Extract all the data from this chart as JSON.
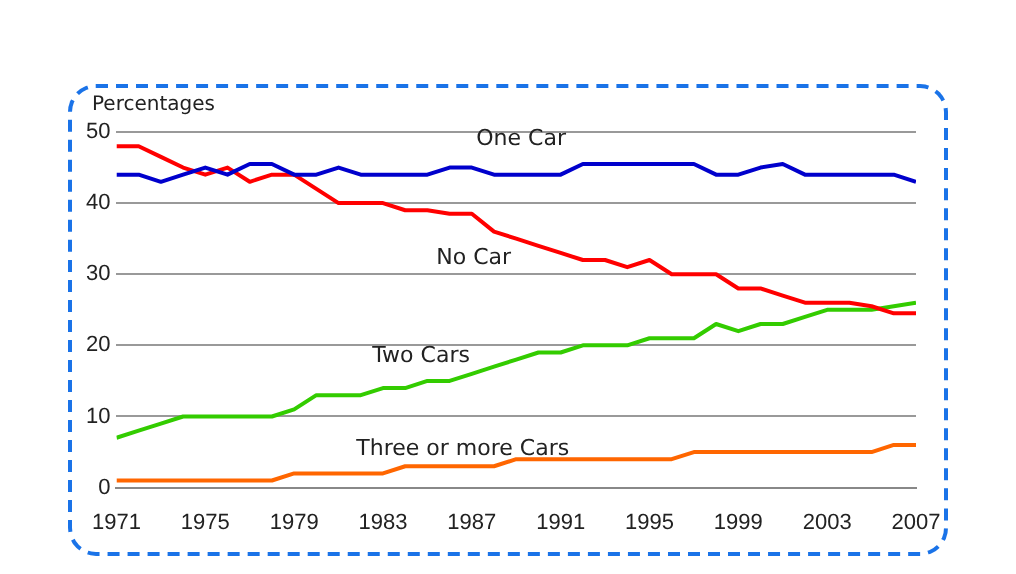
{
  "chart_data": {
    "type": "line",
    "ylabel": "Percentages",
    "x": [
      1971,
      1972,
      1973,
      1974,
      1975,
      1976,
      1977,
      1978,
      1979,
      1980,
      1981,
      1982,
      1983,
      1984,
      1985,
      1986,
      1987,
      1988,
      1989,
      1990,
      1991,
      1992,
      1993,
      1994,
      1995,
      1996,
      1997,
      1998,
      1999,
      2000,
      2001,
      2002,
      2003,
      2004,
      2005,
      2006,
      2007
    ],
    "series": [
      {
        "name": "One Car",
        "color": "#0000cc",
        "values": [
          44,
          44,
          43,
          44,
          45,
          44,
          45.5,
          45.5,
          44,
          44,
          45,
          44,
          44,
          44,
          44,
          45,
          45,
          44,
          44,
          44,
          44,
          45.5,
          45.5,
          45.5,
          45.5,
          45.5,
          45.5,
          44,
          44,
          45,
          45.5,
          44,
          44,
          44,
          44,
          44,
          43
        ]
      },
      {
        "name": "No Car",
        "color": "#ff0000",
        "values": [
          48,
          48,
          46.5,
          45,
          44,
          45,
          43,
          44,
          44,
          42,
          40,
          40,
          40,
          39,
          39,
          38.5,
          38.5,
          36,
          35,
          34,
          33,
          32,
          32,
          31,
          32,
          30,
          30,
          30,
          28,
          28,
          27,
          26,
          26,
          26,
          25.5,
          24.5,
          24.5
        ]
      },
      {
        "name": "Two Cars",
        "color": "#33cc00",
        "values": [
          7,
          8,
          9,
          10,
          10,
          10,
          10,
          10,
          11,
          13,
          13,
          13,
          14,
          14,
          15,
          15,
          16,
          17,
          18,
          19,
          19,
          20,
          20,
          20,
          21,
          21,
          21,
          23,
          22,
          23,
          23,
          24,
          25,
          25,
          25,
          25.5,
          26
        ]
      },
      {
        "name": "Three or more Cars",
        "color": "#ff6600",
        "values": [
          1,
          1,
          1,
          1,
          1,
          1,
          1,
          1,
          2,
          2,
          2,
          2,
          2,
          3,
          3,
          3,
          3,
          3,
          4,
          4,
          4,
          4,
          4,
          4,
          4,
          4,
          5,
          5,
          5,
          5,
          5,
          5,
          5,
          5,
          5,
          6,
          6
        ]
      }
    ],
    "xlim": [
      1971,
      2007
    ],
    "xticks": [
      1971,
      1975,
      1979,
      1983,
      1987,
      1991,
      1995,
      1999,
      2003,
      2007
    ],
    "ylim": [
      0,
      50
    ],
    "yticks": [
      0,
      10,
      20,
      30,
      40,
      50
    ],
    "grid": "y",
    "legend": false,
    "marker": "none",
    "line_style": "solid"
  }
}
